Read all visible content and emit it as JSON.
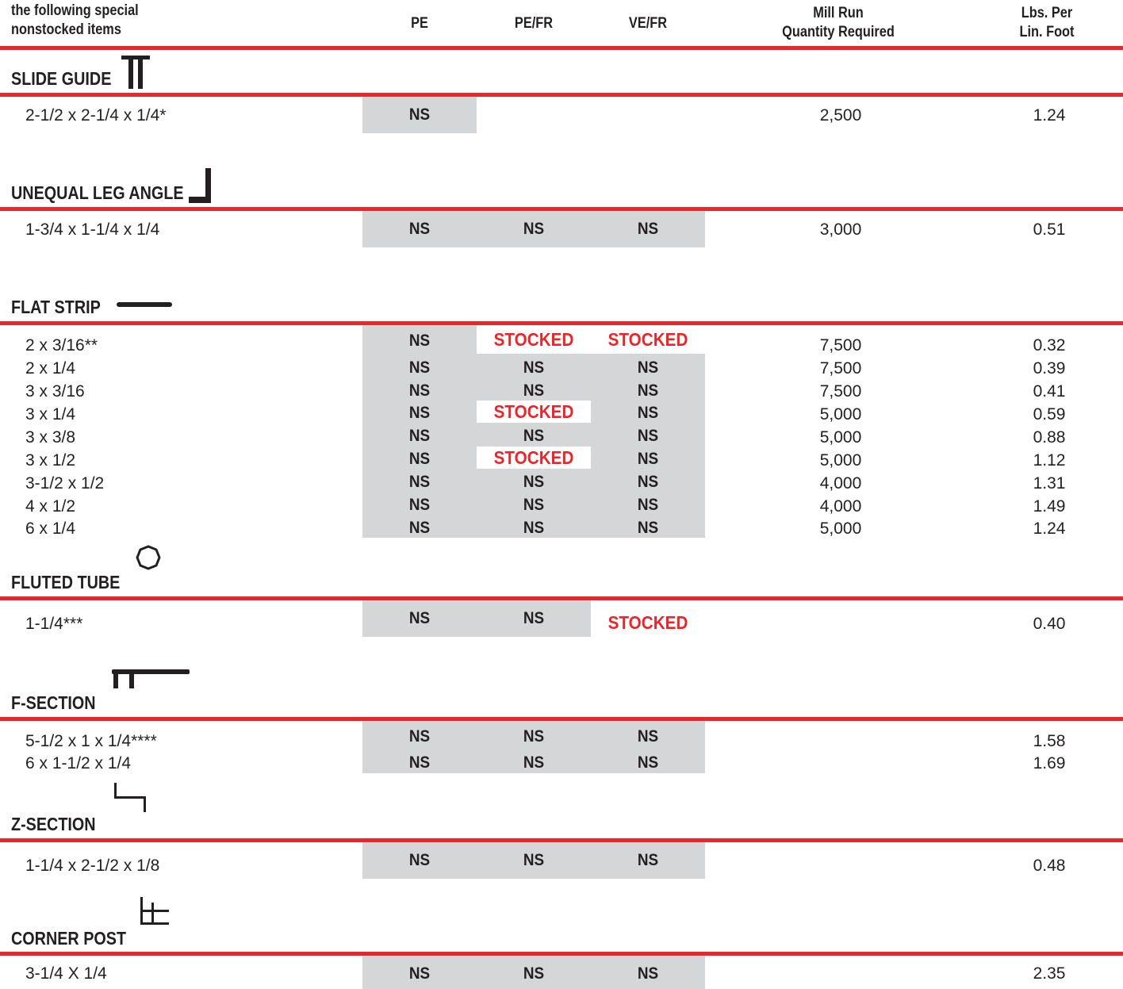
{
  "header": {
    "intro_line1": "the following special",
    "intro_line2": "nonstocked items",
    "col_pe": "PE",
    "col_pefr": "PE/FR",
    "col_vefr": "VE/FR",
    "col_mill_line1": "Mill Run",
    "col_mill_line2": "Quantity Required",
    "col_lbs_line1": "Lbs. Per",
    "col_lbs_line2": "Lin. Foot"
  },
  "sections": [
    {
      "title": "SLIDE GUIDE",
      "icon": "slide-guide-profile-icon",
      "rows": [
        {
          "item": "2-1/2 x 2-1/4 x 1/4*",
          "pe": "NS",
          "pefr": "",
          "vefr": "",
          "mill": "2,500",
          "lbs": "1.24"
        }
      ]
    },
    {
      "title": "UNEQUAL LEG ANGLE",
      "icon": "angle-profile-icon",
      "rows": [
        {
          "item": "1-3/4 x 1-1/4 x 1/4",
          "pe": "NS",
          "pefr": "NS",
          "vefr": "NS",
          "mill": "3,000",
          "lbs": "0.51"
        }
      ]
    },
    {
      "title": "FLAT STRIP",
      "icon": "flat-strip-profile-icon",
      "rows": [
        {
          "item": "2 x 3/16**",
          "pe": "NS",
          "pefr": "STOCKED",
          "vefr": "STOCKED",
          "mill": "7,500",
          "lbs": "0.32"
        },
        {
          "item": "2 x 1/4",
          "pe": "NS",
          "pefr": "NS",
          "vefr": "NS",
          "mill": "7,500",
          "lbs": "0.39"
        },
        {
          "item": "3 x 3/16",
          "pe": "NS",
          "pefr": "NS",
          "vefr": "NS",
          "mill": "7,500",
          "lbs": "0.41"
        },
        {
          "item": "3 x 1/4",
          "pe": "NS",
          "pefr": "STOCKED",
          "vefr": "NS",
          "mill": "5,000",
          "lbs": "0.59"
        },
        {
          "item": "3 x 3/8",
          "pe": "NS",
          "pefr": "NS",
          "vefr": "NS",
          "mill": "5,000",
          "lbs": "0.88"
        },
        {
          "item": "3 x 1/2",
          "pe": "NS",
          "pefr": "STOCKED",
          "vefr": "NS",
          "mill": "5,000",
          "lbs": "1.12"
        },
        {
          "item": "3-1/2 x 1/2",
          "pe": "NS",
          "pefr": "NS",
          "vefr": "NS",
          "mill": "4,000",
          "lbs": "1.31"
        },
        {
          "item": "4 x 1/2",
          "pe": "NS",
          "pefr": "NS",
          "vefr": "NS",
          "mill": "4,000",
          "lbs": "1.49"
        },
        {
          "item": "6 x 1/4",
          "pe": "NS",
          "pefr": "NS",
          "vefr": "NS",
          "mill": "5,000",
          "lbs": "1.24"
        }
      ]
    },
    {
      "title": "FLUTED TUBE",
      "icon": "fluted-tube-profile-icon",
      "rows": [
        {
          "item": "1-1/4***",
          "pe": "NS",
          "pefr": "NS",
          "vefr": "STOCKED",
          "mill": "",
          "lbs": "0.40"
        }
      ]
    },
    {
      "title": "F-SECTION",
      "icon": "f-section-profile-icon",
      "rows": [
        {
          "item": "5-1/2 x 1 x 1/4****",
          "pe": "NS",
          "pefr": "NS",
          "vefr": "NS",
          "mill": "",
          "lbs": "1.58"
        },
        {
          "item": "6 x 1-1/2 x 1/4",
          "pe": "NS",
          "pefr": "NS",
          "vefr": "NS",
          "mill": "",
          "lbs": "1.69"
        }
      ]
    },
    {
      "title": "Z-SECTION",
      "icon": "z-section-profile-icon",
      "rows": [
        {
          "item": "1-1/4 x 2-1/2 x 1/8",
          "pe": "NS",
          "pefr": "NS",
          "vefr": "NS",
          "mill": "",
          "lbs": "0.48"
        }
      ]
    },
    {
      "title": "CORNER POST",
      "icon": "corner-post-profile-icon",
      "rows": [
        {
          "item": "3-1/4 X 1/4",
          "pe": "NS",
          "pefr": "NS",
          "vefr": "NS",
          "mill": "",
          "lbs": "2.35"
        }
      ]
    }
  ]
}
